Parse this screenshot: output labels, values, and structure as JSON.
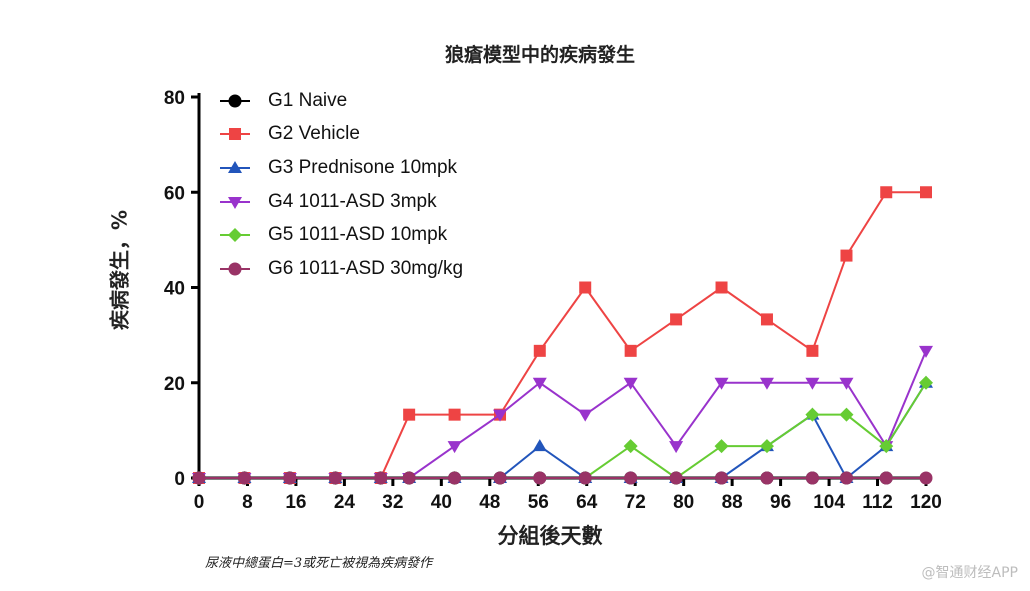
{
  "chart_data": {
    "type": "line",
    "title": "狼瘡模型中的疾病發生",
    "xlabel": "分組後天數",
    "ylabel": "疾病發生，%",
    "x_ticks": [
      "0",
      "8",
      "16",
      "24",
      "32",
      "40",
      "48",
      "56",
      "64",
      "72",
      "80",
      "88",
      "96",
      "104",
      "112",
      "120"
    ],
    "y_ticks": [
      "0",
      "20",
      "40",
      "60",
      "80"
    ],
    "xlim": [
      0,
      120
    ],
    "ylim": [
      0,
      80
    ],
    "legend_position": "top-left",
    "series": [
      {
        "name": "G1 Naive",
        "color": "#000000",
        "marker": "circle",
        "points": [
          [
            0,
            0
          ],
          [
            8,
            0
          ],
          [
            16,
            0
          ],
          [
            24,
            0
          ],
          [
            32,
            0
          ],
          [
            37,
            0
          ],
          [
            45,
            0
          ],
          [
            53,
            0
          ],
          [
            60,
            0
          ],
          [
            68,
            0
          ],
          [
            76,
            0
          ],
          [
            84,
            0
          ],
          [
            92,
            0
          ],
          [
            100,
            0
          ],
          [
            108,
            0
          ],
          [
            114,
            0
          ],
          [
            121,
            0
          ]
        ]
      },
      {
        "name": "G2 Vehicle",
        "color": "#ee4444",
        "marker": "square",
        "points": [
          [
            0,
            0
          ],
          [
            8,
            0
          ],
          [
            16,
            0
          ],
          [
            24,
            0
          ],
          [
            32,
            0
          ],
          [
            37,
            13.3
          ],
          [
            45,
            13.3
          ],
          [
            53,
            13.3
          ],
          [
            60,
            26.7
          ],
          [
            68,
            40
          ],
          [
            76,
            26.7
          ],
          [
            84,
            33.3
          ],
          [
            92,
            40
          ],
          [
            100,
            33.3
          ],
          [
            108,
            26.7
          ],
          [
            114,
            46.7
          ],
          [
            121,
            60
          ],
          [
            128,
            60
          ]
        ]
      },
      {
        "name": "G3 Prednisone 10mpk",
        "color": "#2255bb",
        "marker": "triangle-up",
        "points": [
          [
            0,
            0
          ],
          [
            8,
            0
          ],
          [
            16,
            0
          ],
          [
            24,
            0
          ],
          [
            32,
            0
          ],
          [
            37,
            0
          ],
          [
            45,
            0
          ],
          [
            53,
            0
          ],
          [
            60,
            6.7
          ],
          [
            68,
            0
          ],
          [
            76,
            0
          ],
          [
            84,
            0
          ],
          [
            92,
            0
          ],
          [
            100,
            6.7
          ],
          [
            108,
            13.3
          ],
          [
            114,
            0
          ],
          [
            121,
            6.7
          ],
          [
            128,
            20
          ]
        ]
      },
      {
        "name": "G4 1011-ASD 3mpk",
        "color": "#9933cc",
        "marker": "triangle-down",
        "points": [
          [
            0,
            0
          ],
          [
            8,
            0
          ],
          [
            16,
            0
          ],
          [
            24,
            0
          ],
          [
            32,
            0
          ],
          [
            37,
            0
          ],
          [
            45,
            6.7
          ],
          [
            53,
            13.3
          ],
          [
            60,
            20
          ],
          [
            68,
            13.3
          ],
          [
            76,
            20
          ],
          [
            84,
            6.7
          ],
          [
            92,
            20
          ],
          [
            100,
            20
          ],
          [
            108,
            20
          ],
          [
            114,
            20
          ],
          [
            121,
            6.7
          ],
          [
            128,
            26.7
          ]
        ]
      },
      {
        "name": "G5 1011-ASD 10mpk",
        "color": "#66cc33",
        "marker": "diamond",
        "points": [
          [
            0,
            0
          ],
          [
            8,
            0
          ],
          [
            16,
            0
          ],
          [
            24,
            0
          ],
          [
            32,
            0
          ],
          [
            37,
            0
          ],
          [
            45,
            0
          ],
          [
            53,
            0
          ],
          [
            60,
            0
          ],
          [
            68,
            0
          ],
          [
            76,
            6.7
          ],
          [
            84,
            0
          ],
          [
            92,
            6.7
          ],
          [
            100,
            6.7
          ],
          [
            108,
            13.3
          ],
          [
            114,
            13.3
          ],
          [
            121,
            6.7
          ],
          [
            128,
            20
          ]
        ]
      },
      {
        "name": "G6 1011-ASD 30mg/kg",
        "color": "#993366",
        "marker": "circle",
        "points": [
          [
            0,
            0
          ],
          [
            8,
            0
          ],
          [
            16,
            0
          ],
          [
            24,
            0
          ],
          [
            32,
            0
          ],
          [
            37,
            0
          ],
          [
            45,
            0
          ],
          [
            53,
            0
          ],
          [
            60,
            0
          ],
          [
            68,
            0
          ],
          [
            76,
            0
          ],
          [
            84,
            0
          ],
          [
            92,
            0
          ],
          [
            100,
            0
          ],
          [
            108,
            0
          ],
          [
            114,
            0
          ],
          [
            121,
            0
          ],
          [
            128,
            0
          ]
        ]
      }
    ]
  },
  "footnote": "尿液中總蛋白=3或死亡被視為疾病發作",
  "watermark": "@智通财经APP"
}
